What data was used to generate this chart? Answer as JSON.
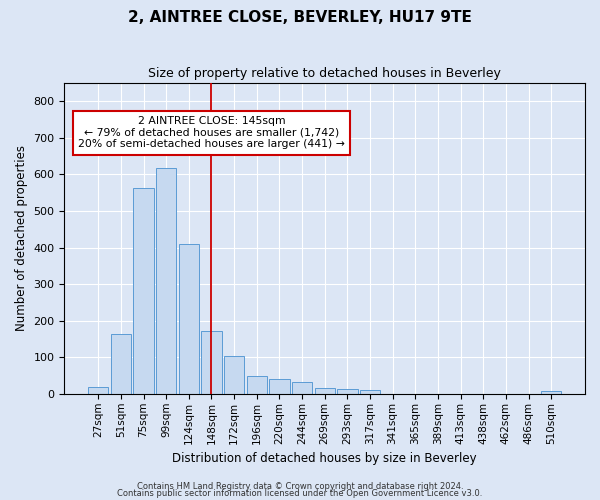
{
  "title": "2, AINTREE CLOSE, BEVERLEY, HU17 9TE",
  "subtitle": "Size of property relative to detached houses in Beverley",
  "xlabel": "Distribution of detached houses by size in Beverley",
  "ylabel": "Number of detached properties",
  "bar_labels": [
    "27sqm",
    "51sqm",
    "75sqm",
    "99sqm",
    "124sqm",
    "148sqm",
    "172sqm",
    "196sqm",
    "220sqm",
    "244sqm",
    "269sqm",
    "293sqm",
    "317sqm",
    "341sqm",
    "365sqm",
    "389sqm",
    "413sqm",
    "438sqm",
    "462sqm",
    "486sqm",
    "510sqm"
  ],
  "bar_values": [
    18,
    163,
    562,
    617,
    410,
    172,
    103,
    50,
    40,
    33,
    15,
    13,
    10,
    0,
    0,
    0,
    0,
    0,
    0,
    0,
    7
  ],
  "bar_color": "#c6d9f0",
  "bar_edge_color": "#5b9bd5",
  "vline_index": 5,
  "vline_color": "#cc0000",
  "annotation_text": "2 AINTREE CLOSE: 145sqm\n← 79% of detached houses are smaller (1,742)\n20% of semi-detached houses are larger (441) →",
  "annotation_box_color": "#ffffff",
  "annotation_box_edge": "#cc0000",
  "ylim": [
    0,
    850
  ],
  "yticks": [
    0,
    100,
    200,
    300,
    400,
    500,
    600,
    700,
    800
  ],
  "footer_line1": "Contains HM Land Registry data © Crown copyright and database right 2024.",
  "footer_line2": "Contains public sector information licensed under the Open Government Licence v3.0.",
  "background_color": "#dce6f5",
  "plot_bg_color": "#dce6f5",
  "title_fontsize": 11,
  "subtitle_fontsize": 9
}
